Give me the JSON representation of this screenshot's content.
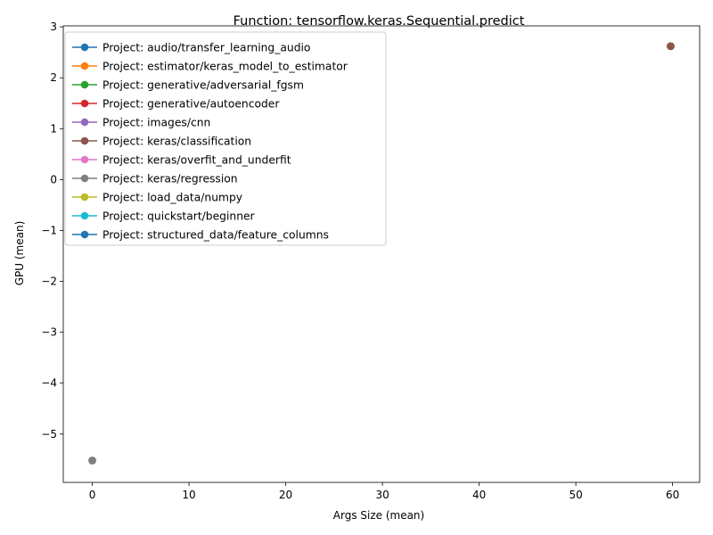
{
  "chart_data": {
    "type": "line",
    "title": "Function: tensorflow.keras.Sequential.predict",
    "xlabel": "Args Size (mean)",
    "ylabel": "GPU (mean)",
    "xlim": [
      -3,
      62.8
    ],
    "ylim": [
      -5.95,
      3.02
    ],
    "x_ticks": [
      0,
      10,
      20,
      30,
      40,
      50,
      60
    ],
    "y_ticks": [
      -5,
      -4,
      -3,
      -2,
      -1,
      0,
      1,
      2,
      3
    ],
    "x_tick_labels": [
      "0",
      "10",
      "20",
      "30",
      "40",
      "50",
      "60"
    ],
    "y_tick_labels": [
      "−5",
      "−4",
      "−3",
      "−2",
      "−1",
      "0",
      "1",
      "2",
      "3"
    ],
    "grid": false,
    "legend_position": "top-left",
    "series": [
      {
        "name": "Project: audio/transfer_learning_audio",
        "color": "#1f77b4",
        "points": []
      },
      {
        "name": "Project: estimator/keras_model_to_estimator",
        "color": "#ff7f0e",
        "points": []
      },
      {
        "name": "Project: generative/adversarial_fgsm",
        "color": "#2ca02c",
        "points": []
      },
      {
        "name": "Project: generative/autoencoder",
        "color": "#d62728",
        "points": []
      },
      {
        "name": "Project: images/cnn",
        "color": "#9467bd",
        "points": []
      },
      {
        "name": "Project: keras/classification",
        "color": "#8c564b",
        "points": [
          {
            "x": 59.8,
            "y": 2.62
          }
        ]
      },
      {
        "name": "Project: keras/overfit_and_underfit",
        "color": "#e377c2",
        "points": []
      },
      {
        "name": "Project: keras/regression",
        "color": "#7f7f7f",
        "points": [
          {
            "x": 0.0,
            "y": -5.52
          }
        ]
      },
      {
        "name": "Project: load_data/numpy",
        "color": "#bcbd22",
        "points": []
      },
      {
        "name": "Project: quickstart/beginner",
        "color": "#17becf",
        "points": []
      },
      {
        "name": "Project: structured_data/feature_columns",
        "color": "#1f77b4",
        "points": []
      }
    ]
  }
}
